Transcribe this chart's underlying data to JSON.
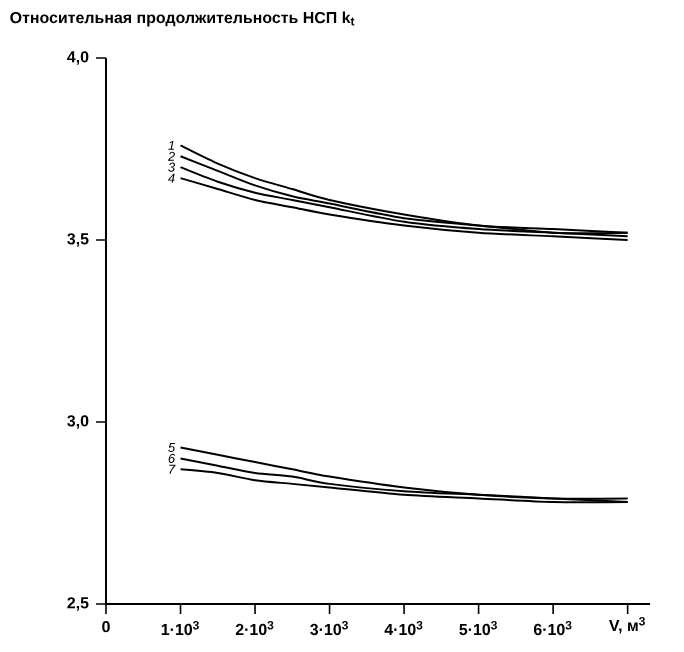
{
  "chart_data": {
    "type": "line",
    "ylabel": "Относительная продолжительность НСП k$_{t}$",
    "xlabel": "V, м$^{3}$",
    "x": [
      1000,
      1500,
      2000,
      2500,
      3000,
      4000,
      5000,
      6000,
      7000
    ],
    "series": [
      {
        "name": "1",
        "color": "#000000",
        "values": [
          3.76,
          3.71,
          3.67,
          3.64,
          3.61,
          3.57,
          3.54,
          3.53,
          3.52
        ]
      },
      {
        "name": "2",
        "color": "#000000",
        "values": [
          3.73,
          3.69,
          3.65,
          3.62,
          3.6,
          3.56,
          3.54,
          3.52,
          3.52
        ]
      },
      {
        "name": "3",
        "color": "#000000",
        "values": [
          3.7,
          3.66,
          3.63,
          3.61,
          3.59,
          3.55,
          3.53,
          3.52,
          3.51
        ]
      },
      {
        "name": "4",
        "color": "#000000",
        "values": [
          3.67,
          3.64,
          3.61,
          3.59,
          3.57,
          3.54,
          3.52,
          3.51,
          3.5
        ]
      },
      {
        "name": "5",
        "color": "#000000",
        "values": [
          2.93,
          2.91,
          2.89,
          2.87,
          2.85,
          2.82,
          2.8,
          2.79,
          2.79
        ]
      },
      {
        "name": "6",
        "color": "#000000",
        "values": [
          2.9,
          2.88,
          2.86,
          2.85,
          2.83,
          2.81,
          2.8,
          2.79,
          2.78
        ]
      },
      {
        "name": "7",
        "color": "#000000",
        "values": [
          2.87,
          2.86,
          2.84,
          2.83,
          2.82,
          2.8,
          2.79,
          2.78,
          2.78
        ]
      }
    ],
    "xlim": [
      0,
      7300
    ],
    "ylim": [
      2.5,
      4.0
    ],
    "xticks": [
      0,
      {
        "value": 1000,
        "label": "1·10$^{3}$"
      },
      {
        "value": 2000,
        "label": "2·10$^{3}$"
      },
      {
        "value": 3000,
        "label": "3·10$^{3}$"
      },
      {
        "value": 4000,
        "label": "4·10$^{3}$"
      },
      {
        "value": 5000,
        "label": "5·10$^{3}$"
      },
      {
        "value": 6000,
        "label": "6·10$^{3}$"
      },
      {
        "value": 7000,
        "label": null
      }
    ],
    "yticks": [
      {
        "value": 2.5,
        "label": "2,5"
      },
      {
        "value": 3.0,
        "label": "3,0"
      },
      {
        "value": 3.5,
        "label": "3,5"
      },
      {
        "value": 4.0,
        "label": "4,0"
      }
    ],
    "grid": false,
    "legend": false,
    "marker": "none",
    "line_style": "solid"
  }
}
